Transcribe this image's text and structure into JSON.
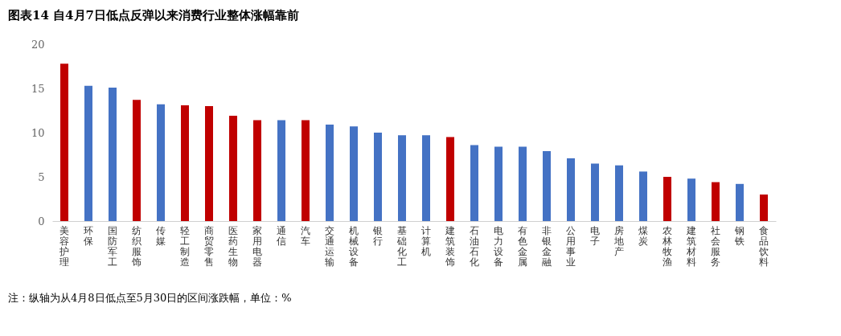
{
  "chart_data": {
    "type": "bar",
    "title": "图表14 自4月7日低点反弹以来消费行业整体涨幅靠前",
    "categories": [
      "美容护理",
      "环保",
      "国防军工",
      "纺织服饰",
      "传媒",
      "轻工制造",
      "商贸零售",
      "医药生物",
      "家用电器",
      "通信",
      "汽车",
      "交通运输",
      "机械设备",
      "银行",
      "基础化工",
      "计算机",
      "建筑装饰",
      "石油石化",
      "电力设备",
      "有色金属",
      "非银金融",
      "公用事业",
      "电子",
      "房地产",
      "煤炭",
      "农林牧渔",
      "建筑材料",
      "社会服务",
      "钢铁",
      "食品饮料"
    ],
    "values": [
      17.8,
      15.3,
      15.1,
      13.7,
      13.2,
      13.1,
      13.0,
      11.9,
      11.4,
      11.4,
      11.4,
      10.9,
      10.7,
      10.0,
      9.7,
      9.7,
      9.5,
      8.6,
      8.4,
      8.4,
      7.9,
      7.1,
      6.5,
      6.3,
      5.6,
      5.0,
      4.8,
      4.4,
      4.2,
      3.0
    ],
    "colors": [
      "#c00000",
      "#4472c4",
      "#4472c4",
      "#c00000",
      "#4472c4",
      "#c00000",
      "#c00000",
      "#c00000",
      "#c00000",
      "#4472c4",
      "#c00000",
      "#4472c4",
      "#4472c4",
      "#4472c4",
      "#4472c4",
      "#4472c4",
      "#c00000",
      "#4472c4",
      "#4472c4",
      "#4472c4",
      "#4472c4",
      "#4472c4",
      "#4472c4",
      "#4472c4",
      "#4472c4",
      "#c00000",
      "#4472c4",
      "#c00000",
      "#4472c4",
      "#c00000"
    ],
    "ylim": [
      0,
      20
    ],
    "yticks": [
      0,
      5,
      10,
      15,
      20
    ],
    "grid": false,
    "annotations": [
      "注：纵轴为从4月8日低点至5月30日的区间涨跌幅，单位：%"
    ]
  }
}
